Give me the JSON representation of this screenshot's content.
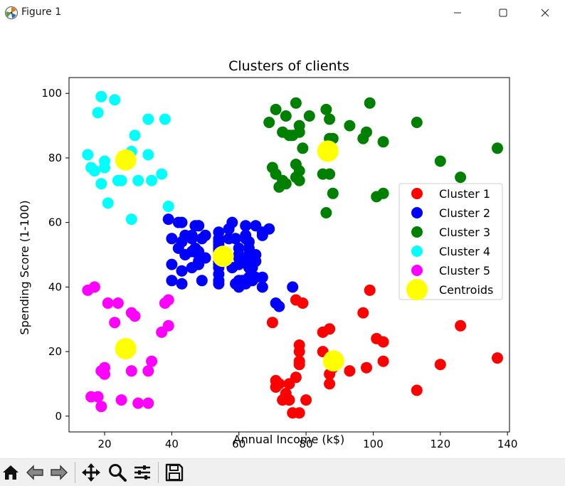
{
  "window": {
    "title": "Figure 1",
    "icons": {
      "app": "matplotlib-icon",
      "minimize": "minimize-icon",
      "maximize": "maximize-icon",
      "close": "close-icon"
    }
  },
  "toolbar": {
    "buttons": [
      {
        "name": "home-icon"
      },
      {
        "name": "back-icon"
      },
      {
        "name": "forward-icon"
      },
      {
        "name": "pan-icon"
      },
      {
        "name": "zoom-icon"
      },
      {
        "name": "configure-subplots-icon"
      },
      {
        "name": "save-icon"
      }
    ]
  },
  "chart_data": {
    "type": "scatter",
    "title": "Clusters of clients",
    "xlabel": "Annual Income (k$)",
    "ylabel": "Spending Score (1-100)",
    "xlim": [
      9.4,
      140.6
    ],
    "ylim": [
      -4.9,
      104.9
    ],
    "xticks": [
      20,
      40,
      60,
      80,
      100,
      120,
      140
    ],
    "yticks": [
      0,
      20,
      40,
      60,
      80,
      100
    ],
    "grid": false,
    "legend_position": "center-right",
    "series": [
      {
        "name": "Cluster 1",
        "color": "#ff0000",
        "points": [
          [
            70,
            29
          ],
          [
            71,
            11
          ],
          [
            71,
            9
          ],
          [
            72,
            10
          ],
          [
            73,
            5
          ],
          [
            74,
            7
          ],
          [
            75,
            5
          ],
          [
            75,
            10
          ],
          [
            76,
            1
          ],
          [
            77,
            12
          ],
          [
            77,
            36
          ],
          [
            78,
            22
          ],
          [
            78,
            20
          ],
          [
            78,
            17
          ],
          [
            78,
            16
          ],
          [
            78,
            1
          ],
          [
            79,
            35
          ],
          [
            80,
            5
          ],
          [
            85,
            26
          ],
          [
            85,
            20
          ],
          [
            87,
            27
          ],
          [
            87,
            10
          ],
          [
            87,
            13
          ],
          [
            88,
            15
          ],
          [
            93,
            14
          ],
          [
            97,
            32
          ],
          [
            98,
            15
          ],
          [
            99,
            39
          ],
          [
            101,
            24
          ],
          [
            103,
            23
          ],
          [
            103,
            17
          ],
          [
            113,
            8
          ],
          [
            120,
            16
          ],
          [
            126,
            28
          ],
          [
            137,
            18
          ]
        ]
      },
      {
        "name": "Cluster 2",
        "color": "#0000ff",
        "points": [
          [
            39,
            61
          ],
          [
            40,
            55
          ],
          [
            40,
            47
          ],
          [
            40,
            42
          ],
          [
            42,
            60
          ],
          [
            42,
            52
          ],
          [
            43,
            60
          ],
          [
            43,
            54
          ],
          [
            43,
            45
          ],
          [
            43,
            41
          ],
          [
            44,
            50
          ],
          [
            44,
            56
          ],
          [
            46,
            51
          ],
          [
            46,
            46
          ],
          [
            46,
            56
          ],
          [
            46,
            55
          ],
          [
            47,
            52
          ],
          [
            47,
            59
          ],
          [
            48,
            51
          ],
          [
            48,
            59
          ],
          [
            48,
            50
          ],
          [
            48,
            48
          ],
          [
            48,
            59
          ],
          [
            48,
            47
          ],
          [
            49,
            55
          ],
          [
            49,
            42
          ],
          [
            50,
            49
          ],
          [
            50,
            56
          ],
          [
            54,
            47
          ],
          [
            54,
            54
          ],
          [
            54,
            53
          ],
          [
            54,
            48
          ],
          [
            54,
            52
          ],
          [
            54,
            42
          ],
          [
            54,
            51
          ],
          [
            54,
            55
          ],
          [
            54,
            41
          ],
          [
            54,
            44
          ],
          [
            54,
            57
          ],
          [
            54,
            46
          ],
          [
            57,
            58
          ],
          [
            57,
            55
          ],
          [
            58,
            60
          ],
          [
            58,
            46
          ],
          [
            59,
            55
          ],
          [
            59,
            41
          ],
          [
            60,
            49
          ],
          [
            60,
            40
          ],
          [
            60,
            42
          ],
          [
            60,
            52
          ],
          [
            60,
            47
          ],
          [
            60,
            50
          ],
          [
            61,
            42
          ],
          [
            61,
            49
          ],
          [
            62,
            41
          ],
          [
            62,
            48
          ],
          [
            62,
            59
          ],
          [
            62,
            55
          ],
          [
            62,
            56
          ],
          [
            62,
            42
          ],
          [
            63,
            50
          ],
          [
            63,
            46
          ],
          [
            63,
            43
          ],
          [
            63,
            48
          ],
          [
            63,
            52
          ],
          [
            63,
            54
          ],
          [
            64,
            42
          ],
          [
            64,
            46
          ],
          [
            65,
            48
          ],
          [
            65,
            50
          ],
          [
            65,
            43
          ],
          [
            65,
            59
          ],
          [
            67,
            43
          ],
          [
            67,
            57
          ],
          [
            67,
            56
          ],
          [
            67,
            40
          ],
          [
            69,
            58
          ],
          [
            71,
            35
          ],
          [
            72,
            34
          ],
          [
            76,
            40
          ]
        ]
      },
      {
        "name": "Cluster 3",
        "color": "#008000",
        "points": [
          [
            69,
            91
          ],
          [
            70,
            77
          ],
          [
            71,
            95
          ],
          [
            71,
            75
          ],
          [
            72,
            71
          ],
          [
            73,
            88
          ],
          [
            73,
            73
          ],
          [
            74,
            72
          ],
          [
            74,
            93
          ],
          [
            75,
            87
          ],
          [
            76,
            87
          ],
          [
            77,
            97
          ],
          [
            77,
            74
          ],
          [
            77,
            78
          ],
          [
            78,
            73
          ],
          [
            78,
            90
          ],
          [
            78,
            88
          ],
          [
            78,
            76
          ],
          [
            79,
            83
          ],
          [
            81,
            93
          ],
          [
            85,
            75
          ],
          [
            86,
            95
          ],
          [
            86,
            63
          ],
          [
            87,
            92
          ],
          [
            87,
            75
          ],
          [
            87,
            86
          ],
          [
            88,
            69
          ],
          [
            88,
            86
          ],
          [
            93,
            90
          ],
          [
            97,
            86
          ],
          [
            98,
            88
          ],
          [
            99,
            97
          ],
          [
            101,
            68
          ],
          [
            103,
            85
          ],
          [
            103,
            69
          ],
          [
            113,
            91
          ],
          [
            120,
            79
          ],
          [
            126,
            74
          ],
          [
            137,
            83
          ]
        ]
      },
      {
        "name": "Cluster 4",
        "color": "#00ffff",
        "points": [
          [
            15,
            81
          ],
          [
            16,
            77
          ],
          [
            17,
            76
          ],
          [
            18,
            94
          ],
          [
            19,
            72
          ],
          [
            19,
            99
          ],
          [
            20,
            77
          ],
          [
            20,
            79
          ],
          [
            21,
            66
          ],
          [
            23,
            98
          ],
          [
            24,
            73
          ],
          [
            25,
            73
          ],
          [
            28,
            82
          ],
          [
            28,
            61
          ],
          [
            29,
            87
          ],
          [
            30,
            73
          ],
          [
            33,
            92
          ],
          [
            33,
            81
          ],
          [
            34,
            73
          ],
          [
            37,
            75
          ],
          [
            38,
            92
          ],
          [
            39,
            65
          ]
        ]
      },
      {
        "name": "Cluster 5",
        "color": "#ff00ff",
        "points": [
          [
            15,
            39
          ],
          [
            16,
            6
          ],
          [
            17,
            40
          ],
          [
            18,
            6
          ],
          [
            19,
            3
          ],
          [
            19,
            14
          ],
          [
            20,
            15
          ],
          [
            20,
            13
          ],
          [
            21,
            35
          ],
          [
            23,
            29
          ],
          [
            24,
            35
          ],
          [
            25,
            5
          ],
          [
            28,
            14
          ],
          [
            28,
            32
          ],
          [
            29,
            31
          ],
          [
            30,
            4
          ],
          [
            33,
            4
          ],
          [
            33,
            14
          ],
          [
            34,
            17
          ],
          [
            37,
            26
          ],
          [
            38,
            35
          ],
          [
            39,
            36
          ],
          [
            39,
            28
          ]
        ]
      },
      {
        "name": "Centroids",
        "color": "#ffff00",
        "size": "large",
        "points": [
          [
            26.3,
            79.4
          ],
          [
            55.3,
            49.5
          ],
          [
            86.5,
            82.1
          ],
          [
            88.2,
            17.1
          ],
          [
            26.3,
            20.9
          ]
        ]
      }
    ]
  }
}
